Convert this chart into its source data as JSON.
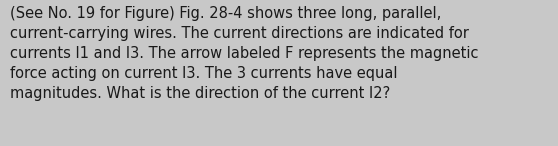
{
  "text": "(See No. 19 for Figure) Fig. 28-4 shows three long, parallel,\ncurrent-carrying wires. The current directions are indicated for\ncurrents I1 and I3. The arrow labeled F represents the magnetic\nforce acting on current I3. The 3 currents have equal\nmagnitudes. What is the direction of the current I2?",
  "background_color": "#c8c8c8",
  "text_color": "#1a1a1a",
  "font_size": 10.5,
  "fig_width": 5.58,
  "fig_height": 1.46,
  "dpi": 100
}
